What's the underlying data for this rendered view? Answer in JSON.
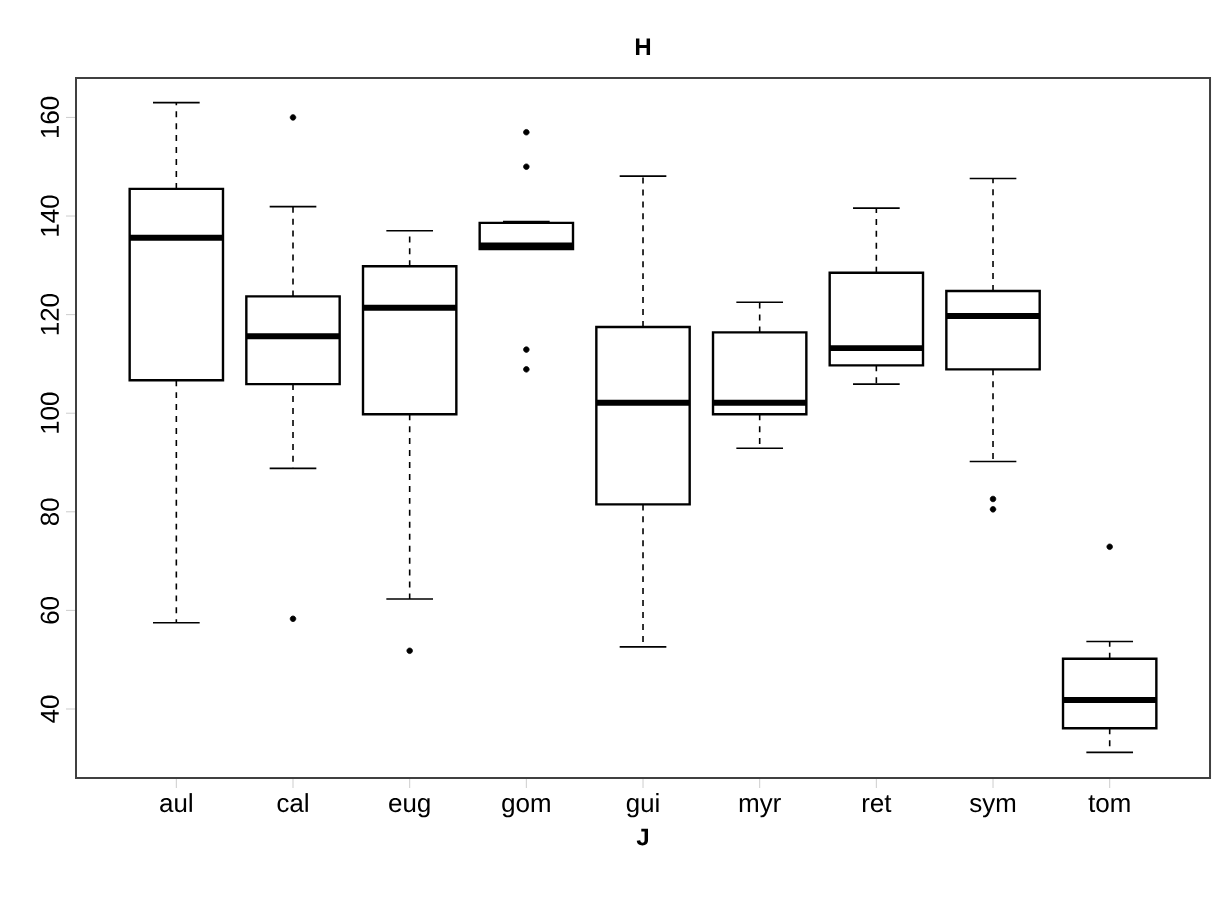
{
  "chart_data": {
    "type": "box",
    "title": "H",
    "xlabel": "J",
    "categories": [
      "aul",
      "cal",
      "eug",
      "gom",
      "gui",
      "myr",
      "ret",
      "sym",
      "tom"
    ],
    "boxes": [
      {
        "low": 57.5,
        "q1": 106.7,
        "median": 135.6,
        "q3": 145.5,
        "high": 163
      },
      {
        "low": 88.8,
        "q1": 105.9,
        "median": 115.6,
        "q3": 123.7,
        "high": 141.9,
        "outliers": [
          160,
          58.3
        ]
      },
      {
        "low": 62.3,
        "q1": 99.8,
        "median": 121.4,
        "q3": 129.8,
        "high": 137,
        "outliers": [
          51.8
        ]
      },
      {
        "low": 133.3,
        "q1": 133.3,
        "median": 134,
        "q3": 138.6,
        "high": 138.9,
        "outliers": [
          157,
          150,
          112.9,
          108.9
        ]
      },
      {
        "low": 52.6,
        "q1": 81.5,
        "median": 102.1,
        "q3": 117.5,
        "high": 148.1
      },
      {
        "low": 92.9,
        "q1": 99.8,
        "median": 102.1,
        "q3": 116.4,
        "high": 122.5
      },
      {
        "low": 105.9,
        "q1": 109.7,
        "median": 113.2,
        "q3": 128.5,
        "high": 141.6
      },
      {
        "low": 90.2,
        "q1": 108.9,
        "median": 119.7,
        "q3": 124.8,
        "high": 147.6,
        "outliers": [
          82.6,
          80.5
        ]
      },
      {
        "low": 31.2,
        "q1": 36.1,
        "median": 41.8,
        "q3": 50.2,
        "high": 53.7,
        "outliers": [
          72.9
        ]
      }
    ],
    "ylim": [
      26,
      168
    ],
    "yticks": [
      40,
      60,
      80,
      100,
      120,
      140,
      160
    ]
  }
}
